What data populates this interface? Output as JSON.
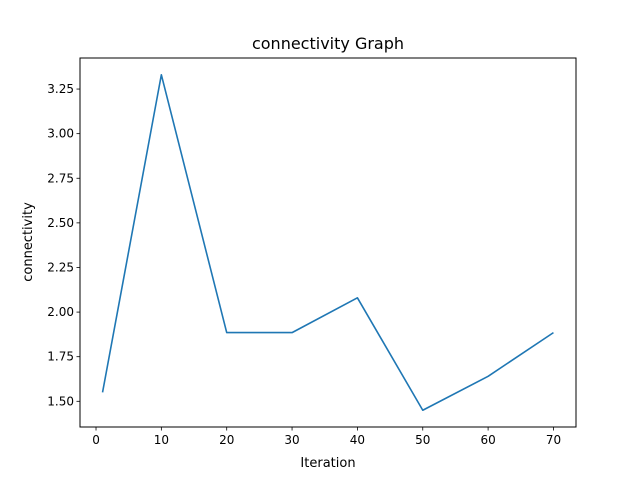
{
  "chart_data": {
    "type": "line",
    "title": "connectivity Graph",
    "xlabel": "Iteration",
    "ylabel": "connectivity",
    "x": [
      1,
      10,
      20,
      30,
      40,
      50,
      60,
      70
    ],
    "series": [
      {
        "name": "connectivity",
        "color": "#1f77b4",
        "values": [
          1.55,
          3.33,
          1.885,
          1.885,
          2.08,
          1.45,
          1.64,
          1.885
        ]
      }
    ],
    "xlim": [
      -2.45,
      73.45
    ],
    "ylim": [
      1.356,
      3.424
    ],
    "xticks": [
      0,
      10,
      20,
      30,
      40,
      50,
      60,
      70
    ],
    "xtick_labels": [
      "0",
      "10",
      "20",
      "30",
      "40",
      "50",
      "60",
      "70"
    ],
    "yticks": [
      1.5,
      1.75,
      2.0,
      2.25,
      2.5,
      2.75,
      3.0,
      3.25
    ],
    "ytick_labels": [
      "1.50",
      "1.75",
      "2.00",
      "2.25",
      "2.50",
      "2.75",
      "3.00",
      "3.25"
    ],
    "grid": false,
    "legend": "none"
  }
}
